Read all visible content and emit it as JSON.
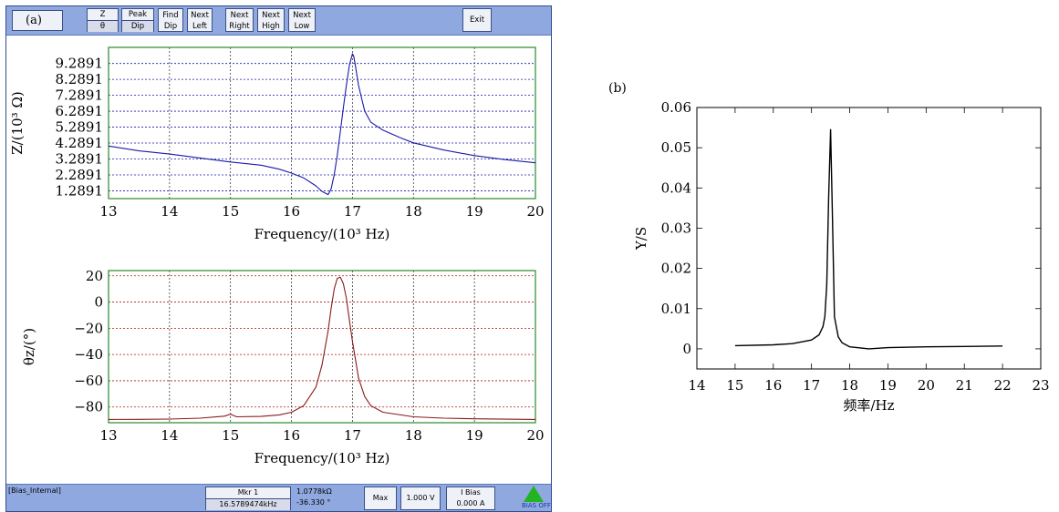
{
  "analyzer": {
    "panel_label": "(a)",
    "toolbar": {
      "z_theta": [
        "Z",
        "θ"
      ],
      "peak_dip": [
        "Peak",
        "Dip"
      ],
      "find_dip": [
        "Find",
        "Dip"
      ],
      "next_left": [
        "Next",
        "Left"
      ],
      "next_right": [
        "Next",
        "Right"
      ],
      "next_high": [
        "Next",
        "High"
      ],
      "next_low": [
        "Next",
        "Low"
      ],
      "exit": "Exit"
    },
    "status": {
      "bias_source": "[Bias_Internal]",
      "marker_label": "Mkr 1",
      "marker_freq": "16.5789474kHz",
      "marker_value": "1.0778kΩ",
      "marker_phase": "-36.330 °",
      "max_button": "Max",
      "voltage_button": "1.000 V",
      "ibias_label": "I Bias",
      "ibias_value": "0.000 A",
      "bias_state": "BIAS OFF"
    },
    "colors": {
      "toolbar": "#8fa9e0",
      "z_trace": "#1a1aa8",
      "theta_trace": "#8b1a1a",
      "frame": "#2a8a2a",
      "bias_indicator": "#22b422"
    }
  },
  "chart_data": [
    {
      "type": "line",
      "xlabel": "Frequency/(10³ Hz)",
      "ylabel": "Z/(10³ Ω)",
      "xlim": [
        13,
        20
      ],
      "ylim": [
        0.8,
        10.3
      ],
      "xticks": [
        "13",
        "14",
        "15",
        "16",
        "17",
        "18",
        "19",
        "20"
      ],
      "yticks": [
        "1.2891",
        "2.2891",
        "3.2891",
        "4.2891",
        "5.2891",
        "6.2891",
        "7.2891",
        "8.2891",
        "9.2891"
      ],
      "ytick_values": [
        1.2891,
        2.2891,
        3.2891,
        4.2891,
        5.2891,
        6.2891,
        7.2891,
        8.2891,
        9.2891
      ],
      "grid": true,
      "x": [
        13,
        13.5,
        14,
        14.5,
        15,
        15.5,
        15.8,
        16.0,
        16.2,
        16.4,
        16.5,
        16.6,
        16.65,
        16.7,
        16.75,
        16.8,
        16.85,
        16.9,
        16.95,
        17.0,
        17.02,
        17.05,
        17.1,
        17.2,
        17.3,
        17.5,
        17.8,
        18,
        18.5,
        19,
        19.5,
        20
      ],
      "y": [
        4.1,
        3.8,
        3.6,
        3.35,
        3.1,
        2.9,
        2.65,
        2.4,
        2.1,
        1.6,
        1.25,
        1.05,
        1.4,
        2.3,
        3.5,
        5.0,
        6.5,
        7.9,
        9.2,
        9.9,
        9.75,
        9.1,
        7.9,
        6.3,
        5.6,
        5.1,
        4.6,
        4.3,
        3.85,
        3.5,
        3.25,
        3.05
      ]
    },
    {
      "type": "line",
      "xlabel": "Frequency/(10³ Hz)",
      "ylabel": "θz/(°)",
      "xlim": [
        13,
        20
      ],
      "ylim": [
        -92,
        24
      ],
      "xticks": [
        "13",
        "14",
        "15",
        "16",
        "17",
        "18",
        "19",
        "20"
      ],
      "yticks": [
        "20",
        "0",
        "−20",
        "−40",
        "−60",
        "−80"
      ],
      "ytick_values": [
        20,
        0,
        -20,
        -40,
        -60,
        -80
      ],
      "grid": true,
      "x": [
        13,
        13.5,
        14,
        14.5,
        14.9,
        15.0,
        15.1,
        15.5,
        15.8,
        16.0,
        16.2,
        16.4,
        16.5,
        16.6,
        16.65,
        16.7,
        16.75,
        16.8,
        16.85,
        16.9,
        16.95,
        17.0,
        17.1,
        17.2,
        17.3,
        17.5,
        18,
        18.5,
        19,
        19.5,
        20
      ],
      "y": [
        -89.5,
        -89.4,
        -89.2,
        -88.5,
        -87,
        -85.5,
        -87.5,
        -87.2,
        -86,
        -84,
        -79,
        -65,
        -48,
        -22,
        -5,
        10,
        18,
        19,
        14,
        3,
        -14,
        -30,
        -58,
        -72,
        -79,
        -84,
        -87.5,
        -88.5,
        -89,
        -89.3,
        -89.5
      ]
    },
    {
      "type": "line",
      "panel_label": "(b)",
      "xlabel": "频率/Hz",
      "ylabel": "Y/S",
      "xlim": [
        14,
        23
      ],
      "ylim": [
        -0.005,
        0.06
      ],
      "xticks": [
        "14",
        "15",
        "16",
        "17",
        "18",
        "19",
        "20",
        "21",
        "22",
        "23"
      ],
      "yticks": [
        "0",
        "0.01",
        "0.02",
        "0.03",
        "0.04",
        "0.05",
        "0.06"
      ],
      "ytick_values": [
        0,
        0.01,
        0.02,
        0.03,
        0.04,
        0.05,
        0.06
      ],
      "grid": false,
      "x": [
        15,
        16,
        16.5,
        17,
        17.2,
        17.3,
        17.35,
        17.4,
        17.45,
        17.5,
        17.55,
        17.6,
        17.7,
        17.8,
        18,
        18.5,
        19,
        20,
        21,
        22
      ],
      "y": [
        0.0008,
        0.001,
        0.0013,
        0.0022,
        0.0035,
        0.0055,
        0.008,
        0.016,
        0.038,
        0.0545,
        0.032,
        0.008,
        0.003,
        0.0015,
        0.0005,
        0.0,
        0.0003,
        0.0005,
        0.0006,
        0.0007
      ]
    }
  ]
}
